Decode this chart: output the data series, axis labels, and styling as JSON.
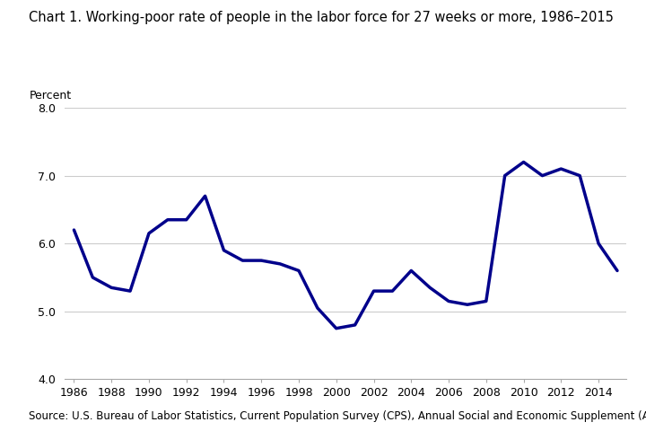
{
  "title": "Chart 1. Working-poor rate of people in the labor force for 27 weeks or more, 1986–2015",
  "ylabel": "Percent",
  "source": "Source: U.S. Bureau of Labor Statistics, Current Population Survey (CPS), Annual Social and Economic Supplement (ASEC).",
  "years": [
    1986,
    1987,
    1988,
    1989,
    1990,
    1991,
    1992,
    1993,
    1994,
    1995,
    1996,
    1997,
    1998,
    1999,
    2000,
    2001,
    2002,
    2003,
    2004,
    2005,
    2006,
    2007,
    2008,
    2009,
    2010,
    2011,
    2012,
    2013,
    2014,
    2015
  ],
  "values": [
    6.2,
    5.5,
    5.35,
    5.3,
    6.15,
    6.35,
    6.35,
    6.7,
    5.9,
    5.75,
    5.75,
    5.7,
    5.6,
    5.05,
    4.75,
    4.8,
    5.3,
    5.3,
    5.6,
    5.35,
    5.15,
    5.1,
    5.15,
    7.0,
    7.2,
    7.0,
    7.1,
    7.0,
    6.0,
    5.6
  ],
  "line_color": "#00008B",
  "line_width": 2.5,
  "xlim": [
    1985.5,
    2015.5
  ],
  "ylim": [
    4.0,
    8.0
  ],
  "yticks": [
    4.0,
    5.0,
    6.0,
    7.0,
    8.0
  ],
  "xticks": [
    1986,
    1988,
    1990,
    1992,
    1994,
    1996,
    1998,
    2000,
    2002,
    2004,
    2006,
    2008,
    2010,
    2012,
    2014
  ],
  "grid_color": "#cccccc",
  "background_color": "#ffffff",
  "title_fontsize": 10.5,
  "label_fontsize": 9,
  "tick_fontsize": 9,
  "source_fontsize": 8.5
}
